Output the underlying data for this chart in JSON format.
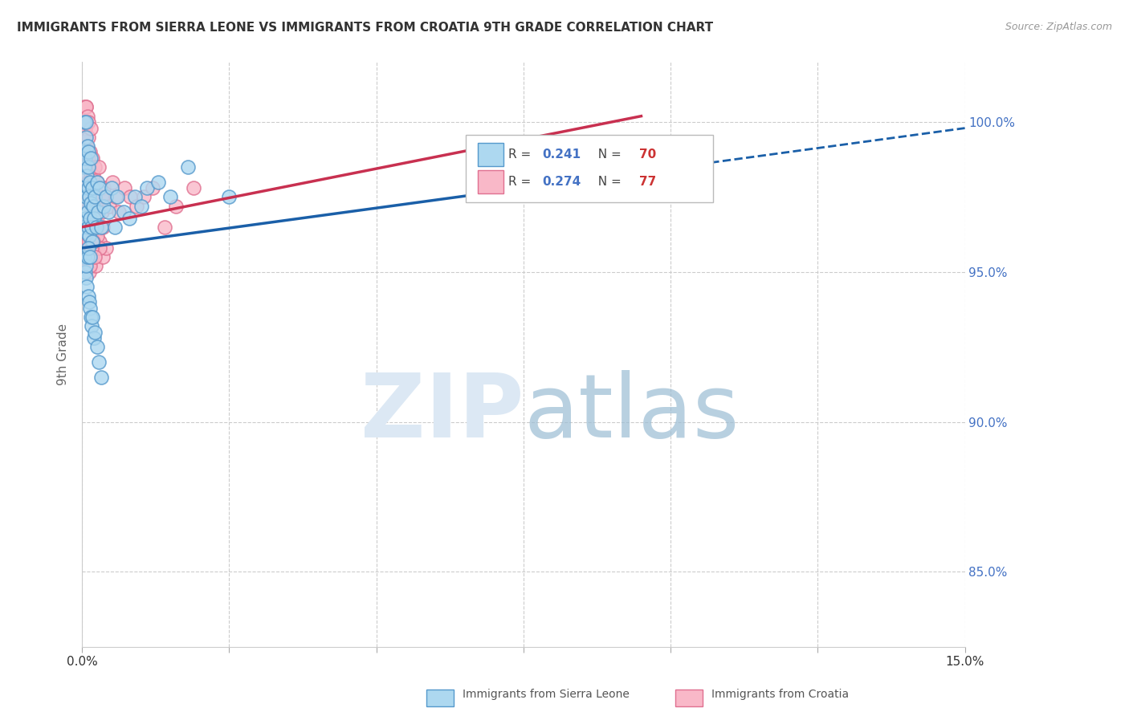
{
  "title": "IMMIGRANTS FROM SIERRA LEONE VS IMMIGRANTS FROM CROATIA 9TH GRADE CORRELATION CHART",
  "source": "Source: ZipAtlas.com",
  "ylabel": "9th Grade",
  "y_ticks": [
    85.0,
    90.0,
    95.0,
    100.0
  ],
  "x_min": 0.0,
  "x_max": 15.0,
  "y_min": 82.5,
  "y_max": 102.0,
  "sierra_leone_R": 0.241,
  "sierra_leone_N": 70,
  "croatia_R": 0.274,
  "croatia_N": 77,
  "sierra_leone_color_face": "#add8f0",
  "sierra_leone_color_edge": "#5599cc",
  "croatia_color_face": "#f9b8c8",
  "croatia_color_edge": "#e07090",
  "sierra_leone_line_color": "#1a5fa8",
  "croatia_line_color": "#c83050",
  "legend_sierra_leone": "Immigrants from Sierra Leone",
  "legend_croatia": "Immigrants from Croatia",
  "background_color": "#ffffff",
  "sl_x": [
    0.02,
    0.03,
    0.03,
    0.04,
    0.04,
    0.05,
    0.05,
    0.06,
    0.06,
    0.07,
    0.07,
    0.08,
    0.08,
    0.09,
    0.09,
    0.1,
    0.1,
    0.11,
    0.11,
    0.12,
    0.12,
    0.13,
    0.14,
    0.15,
    0.15,
    0.16,
    0.17,
    0.18,
    0.19,
    0.2,
    0.22,
    0.24,
    0.25,
    0.27,
    0.3,
    0.33,
    0.36,
    0.4,
    0.45,
    0.5,
    0.55,
    0.6,
    0.7,
    0.8,
    0.9,
    1.0,
    1.1,
    1.3,
    1.5,
    1.8,
    0.04,
    0.05,
    0.06,
    0.07,
    0.08,
    0.09,
    0.1,
    0.11,
    0.12,
    0.13,
    0.14,
    0.15,
    0.16,
    0.18,
    0.2,
    0.22,
    0.25,
    0.28,
    0.32,
    2.5
  ],
  "sl_y": [
    96.5,
    97.8,
    99.0,
    98.5,
    100.0,
    97.2,
    98.8,
    96.8,
    99.5,
    97.5,
    100.0,
    96.3,
    98.2,
    97.0,
    99.2,
    96.5,
    98.5,
    97.8,
    99.0,
    96.2,
    97.5,
    98.0,
    96.8,
    97.3,
    98.8,
    96.5,
    97.8,
    96.0,
    97.2,
    96.8,
    97.5,
    96.5,
    98.0,
    97.0,
    97.8,
    96.5,
    97.2,
    97.5,
    97.0,
    97.8,
    96.5,
    97.5,
    97.0,
    96.8,
    97.5,
    97.2,
    97.8,
    98.0,
    97.5,
    98.5,
    95.5,
    95.0,
    94.8,
    95.2,
    94.5,
    95.5,
    94.2,
    95.8,
    94.0,
    95.5,
    93.8,
    93.5,
    93.2,
    93.5,
    92.8,
    93.0,
    92.5,
    92.0,
    91.5,
    97.5
  ],
  "cr_x": [
    0.02,
    0.03,
    0.03,
    0.04,
    0.04,
    0.05,
    0.05,
    0.06,
    0.06,
    0.07,
    0.07,
    0.08,
    0.08,
    0.09,
    0.09,
    0.1,
    0.1,
    0.11,
    0.11,
    0.12,
    0.12,
    0.13,
    0.14,
    0.15,
    0.15,
    0.16,
    0.17,
    0.18,
    0.19,
    0.2,
    0.22,
    0.24,
    0.26,
    0.28,
    0.31,
    0.34,
    0.37,
    0.41,
    0.46,
    0.52,
    0.57,
    0.63,
    0.72,
    0.82,
    0.93,
    1.05,
    1.2,
    1.4,
    1.6,
    1.9,
    0.03,
    0.05,
    0.06,
    0.07,
    0.08,
    0.09,
    0.1,
    0.11,
    0.12,
    0.14,
    0.15,
    0.16,
    0.18,
    0.2,
    0.23,
    0.26,
    0.3,
    0.35,
    0.4,
    0.22,
    0.25,
    0.3,
    0.35,
    0.13,
    0.16,
    0.21,
    0.19
  ],
  "cr_y": [
    97.5,
    98.8,
    100.0,
    99.5,
    100.5,
    98.2,
    99.8,
    97.8,
    100.5,
    98.5,
    100.5,
    97.3,
    99.2,
    98.0,
    100.2,
    97.5,
    99.5,
    98.8,
    100.0,
    97.2,
    98.5,
    99.0,
    97.8,
    98.3,
    99.8,
    97.5,
    98.8,
    97.0,
    98.2,
    97.8,
    98.5,
    97.5,
    98.0,
    98.5,
    97.5,
    97.0,
    97.8,
    97.5,
    97.2,
    98.0,
    97.5,
    97.0,
    97.8,
    97.5,
    97.2,
    97.5,
    97.8,
    96.5,
    97.2,
    97.8,
    96.5,
    96.2,
    95.8,
    96.5,
    95.5,
    96.2,
    95.2,
    96.0,
    95.0,
    96.2,
    95.8,
    96.5,
    95.5,
    95.8,
    95.2,
    95.8,
    96.0,
    95.5,
    95.8,
    96.5,
    96.2,
    95.8,
    96.5,
    95.2,
    95.8,
    95.5,
    96.0
  ]
}
